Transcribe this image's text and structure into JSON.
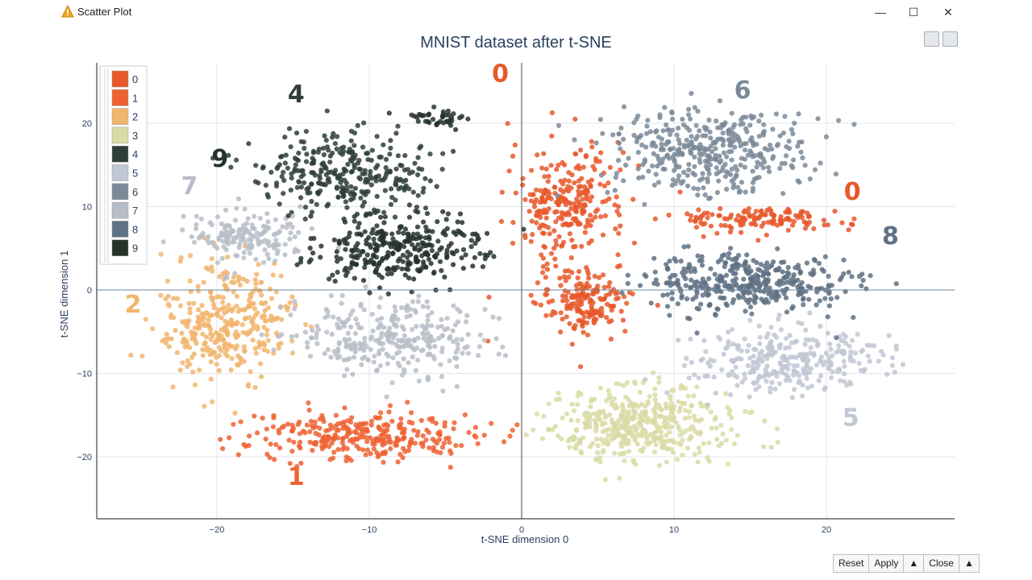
{
  "window": {
    "title": "Scatter Plot",
    "controls": {
      "minimize": "—",
      "maximize": "☐",
      "close": "✕"
    }
  },
  "footer": {
    "reset": "Reset",
    "apply": "Apply",
    "close": "Close",
    "arrow": "▲"
  },
  "colors": {
    "0": "#e8582a",
    "1": "#ee6232",
    "2": "#f2b56e",
    "3": "#d9dca6",
    "4": "#2e3e38",
    "5": "#c1c7d3",
    "6": "#7a8a99",
    "7": "#b8bec8",
    "8": "#5f7184",
    "9": "#26332b"
  },
  "chart_data": {
    "type": "scatter",
    "title": "MNIST dataset after t-SNE",
    "xlabel": "t-SNE dimension 0",
    "ylabel": "t-SNE dimension 1",
    "xlim": [
      -28,
      28
    ],
    "ylim": [
      -27,
      27
    ],
    "xticks": [
      -20,
      -10,
      0,
      10,
      20
    ],
    "yticks": [
      -20,
      -10,
      0,
      10,
      20
    ],
    "grid": true,
    "legend_position": "top-left",
    "legend": [
      "0",
      "1",
      "2",
      "3",
      "4",
      "5",
      "6",
      "7",
      "8",
      "9"
    ],
    "annotations": [
      {
        "text": "0",
        "x": -1.4,
        "y": 25,
        "class": "0"
      },
      {
        "text": "6",
        "x": 14.5,
        "y": 23,
        "class": "6"
      },
      {
        "text": "4",
        "x": -14.8,
        "y": 22.5,
        "class": "4"
      },
      {
        "text": "9",
        "x": -19.8,
        "y": 14.8,
        "class": "9"
      },
      {
        "text": "7",
        "x": -21.8,
        "y": 11.5,
        "class": "7"
      },
      {
        "text": "0",
        "x": 21.7,
        "y": 10.8,
        "class": "0"
      },
      {
        "text": "8",
        "x": 24.2,
        "y": 5.5,
        "class": "8"
      },
      {
        "text": "2",
        "x": -25.5,
        "y": -2.7,
        "class": "2"
      },
      {
        "text": "5",
        "x": 21.6,
        "y": -16.3,
        "class": "5"
      },
      {
        "text": "1",
        "x": -14.8,
        "y": -23.4,
        "class": "1"
      }
    ],
    "clusters": [
      {
        "digit": "0",
        "points": 260,
        "center": [
          3.0,
          10.5
        ],
        "spread": [
          3.8,
          6.5
        ]
      },
      {
        "digit": "0",
        "points": 180,
        "center": [
          4.2,
          -1.5
        ],
        "spread": [
          3.0,
          3.8
        ]
      },
      {
        "digit": "0",
        "points": 130,
        "center": [
          15.5,
          8.5
        ],
        "spread": [
          5.5,
          1.6
        ]
      },
      {
        "digit": "1",
        "points": 300,
        "center": [
          -10.5,
          -17.5
        ],
        "spread": [
          7.5,
          2.8
        ]
      },
      {
        "digit": "2",
        "points": 340,
        "center": [
          -19.5,
          -4.0
        ],
        "spread": [
          4.2,
          6.8
        ]
      },
      {
        "digit": "3",
        "points": 420,
        "center": [
          8.0,
          -16.0
        ],
        "spread": [
          6.0,
          4.5
        ]
      },
      {
        "digit": "4",
        "points": 300,
        "center": [
          -11.5,
          14.0
        ],
        "spread": [
          5.5,
          4.5
        ]
      },
      {
        "digit": "5",
        "points": 300,
        "center": [
          17.0,
          -8.5
        ],
        "spread": [
          6.5,
          4.0
        ]
      },
      {
        "digit": "6",
        "points": 380,
        "center": [
          12.0,
          16.5
        ],
        "spread": [
          6.5,
          5.5
        ]
      },
      {
        "digit": "7",
        "points": 300,
        "center": [
          -8.5,
          -6.0
        ],
        "spread": [
          6.0,
          4.5
        ]
      },
      {
        "digit": "7",
        "points": 160,
        "center": [
          -18.0,
          6.5
        ],
        "spread": [
          3.5,
          3.0
        ]
      },
      {
        "digit": "8",
        "points": 380,
        "center": [
          14.5,
          1.0
        ],
        "spread": [
          7.0,
          3.5
        ]
      },
      {
        "digit": "9",
        "points": 320,
        "center": [
          -8.0,
          5.0
        ],
        "spread": [
          5.5,
          4.0
        ]
      },
      {
        "digit": "9",
        "points": 40,
        "center": [
          -5.5,
          20.5
        ],
        "spread": [
          2.0,
          1.2
        ]
      }
    ]
  }
}
